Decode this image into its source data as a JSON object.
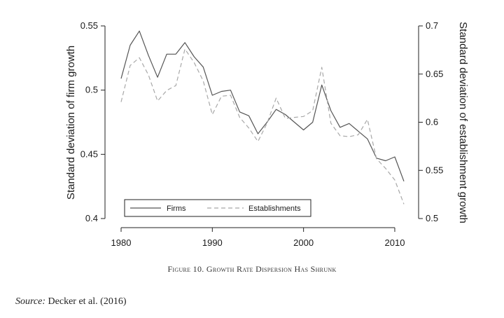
{
  "chart_data": {
    "type": "line",
    "title": "Figure 10. Growth Rate Dispersion Has Shrunk",
    "xlabel": "",
    "ylabel_left": "Standard deviation of firm growth",
    "ylabel_right": "Standard deviation of establishment growth",
    "xlim": [
      1980,
      2011
    ],
    "ylim_left": [
      0.4,
      0.55
    ],
    "ylim_right": [
      0.5,
      0.7
    ],
    "x_ticks": [
      1980,
      1990,
      2000,
      2010
    ],
    "x_tick_labels": [
      "1980",
      "1990",
      "2000",
      "2010"
    ],
    "y_left_ticks": [
      0.4,
      0.45,
      0.5,
      0.55
    ],
    "y_left_tick_labels": [
      "0.4",
      "0.45",
      "0.5",
      "0.55"
    ],
    "y_right_ticks": [
      0.5,
      0.55,
      0.6,
      0.65,
      0.7
    ],
    "y_right_tick_labels": [
      "0.5",
      "0.55",
      "0.6",
      "0.65",
      "0.7"
    ],
    "legend_position": "bottom-left",
    "x": [
      1980,
      1981,
      1982,
      1983,
      1984,
      1985,
      1986,
      1987,
      1988,
      1989,
      1990,
      1991,
      1992,
      1993,
      1994,
      1995,
      1996,
      1997,
      1998,
      1999,
      2000,
      2001,
      2002,
      2003,
      2004,
      2005,
      2006,
      2007,
      2008,
      2009,
      2010,
      2011
    ],
    "series": [
      {
        "name": "Firms",
        "axis": "left",
        "style": "solid",
        "values": [
          0.509,
          0.535,
          0.546,
          0.527,
          0.51,
          0.528,
          0.528,
          0.537,
          0.526,
          0.518,
          0.496,
          0.499,
          0.5,
          0.483,
          0.48,
          0.466,
          0.475,
          0.485,
          0.481,
          0.475,
          0.469,
          0.475,
          0.504,
          0.484,
          0.471,
          0.474,
          0.468,
          0.462,
          0.447,
          0.445,
          0.448,
          0.429
        ]
      },
      {
        "name": "Establishments",
        "axis": "right",
        "style": "dashed",
        "values": [
          0.621,
          0.659,
          0.667,
          0.649,
          0.622,
          0.633,
          0.638,
          0.676,
          0.662,
          0.643,
          0.608,
          0.627,
          0.628,
          0.605,
          0.594,
          0.58,
          0.599,
          0.625,
          0.604,
          0.605,
          0.606,
          0.612,
          0.657,
          0.599,
          0.586,
          0.585,
          0.587,
          0.603,
          0.562,
          0.552,
          0.54,
          0.515
        ]
      }
    ]
  },
  "caption": "Figure 10. Growth Rate Dispersion Has Shrunk",
  "source": {
    "label": "Source:",
    "text": "Decker et al. (2016)"
  },
  "colors": {
    "firms": "#555555",
    "establishments": "#a8a8a8",
    "axis": "#222222"
  }
}
